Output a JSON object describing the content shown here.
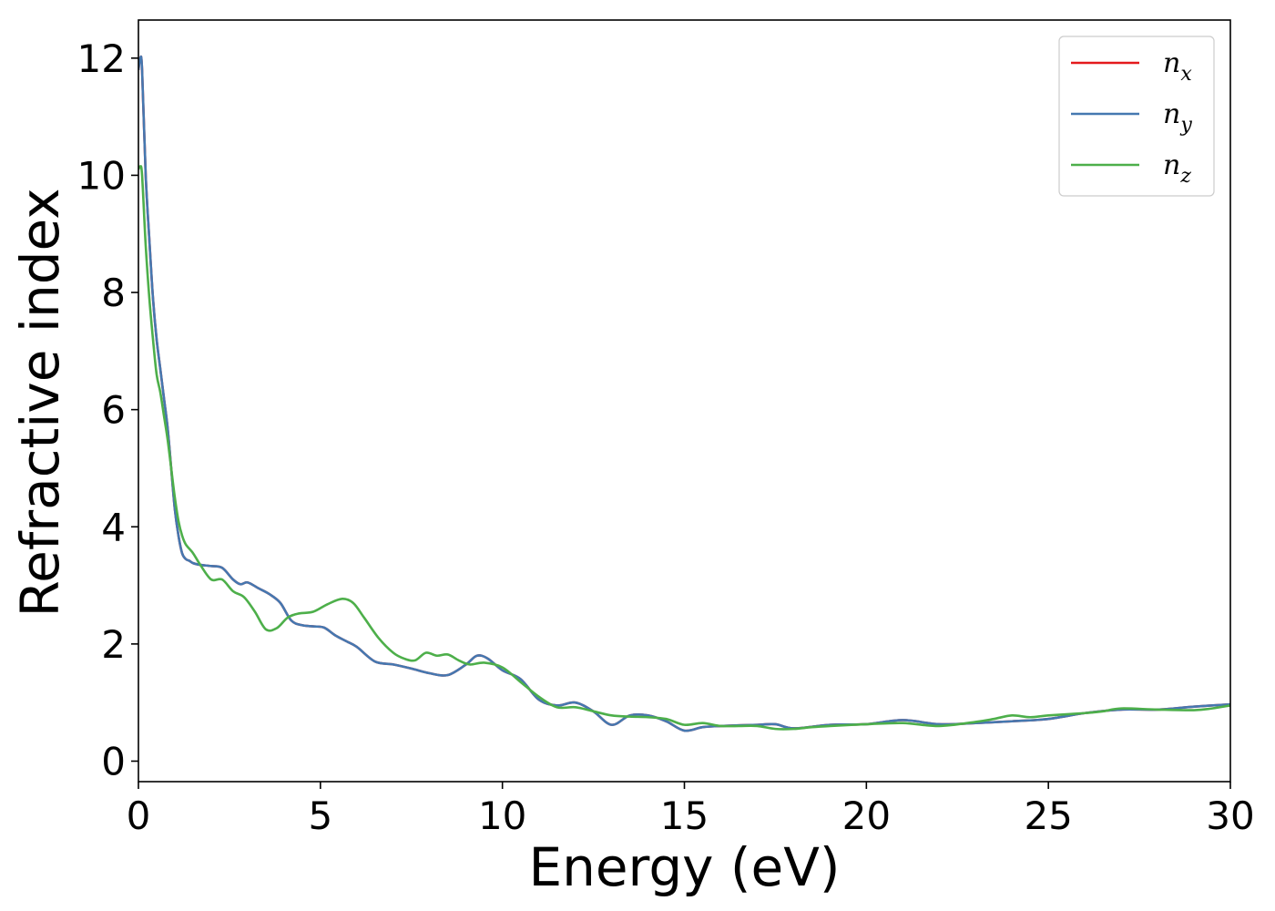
{
  "chart_data": {
    "type": "line",
    "title": "",
    "xlabel": "Energy (eV)",
    "ylabel": "Refractive index",
    "xlim": [
      0,
      30
    ],
    "ylim": [
      -0.35,
      12.65
    ],
    "xticks": [
      0,
      5,
      10,
      15,
      20,
      25,
      30
    ],
    "yticks": [
      0,
      2,
      4,
      6,
      8,
      10,
      12
    ],
    "grid": false,
    "legend_position": "top-right",
    "series": [
      {
        "name": "n_x",
        "label_base": "n",
        "label_sub": "x",
        "color": "#e41a1c",
        "x": [
          0,
          0.05,
          0.1,
          0.2,
          0.3,
          0.4,
          0.5,
          0.6,
          0.7,
          0.8,
          0.9,
          1.0,
          1.1,
          1.2,
          1.3,
          1.4,
          1.5,
          1.7,
          2.0,
          2.3,
          2.6,
          2.8,
          3.0,
          3.3,
          3.6,
          3.9,
          4.2,
          4.5,
          4.8,
          5.1,
          5.4,
          5.7,
          6.0,
          6.5,
          7.0,
          7.5,
          8.0,
          8.5,
          9.0,
          9.3,
          9.6,
          10.0,
          10.5,
          11.0,
          11.5,
          12.0,
          12.5,
          13.0,
          13.5,
          14.0,
          14.5,
          15.0,
          15.5,
          16.0,
          17.0,
          17.5,
          18.0,
          19.0,
          20.0,
          21.0,
          22.0,
          23.0,
          24.0,
          25.0,
          26.0,
          27.0,
          28.0,
          29.0,
          30.0
        ],
        "y": [
          11.8,
          12.0,
          11.8,
          10.0,
          8.9,
          7.9,
          7.2,
          6.7,
          6.2,
          5.7,
          5.0,
          4.3,
          3.85,
          3.55,
          3.45,
          3.42,
          3.38,
          3.35,
          3.33,
          3.3,
          3.1,
          3.02,
          3.05,
          2.95,
          2.85,
          2.7,
          2.4,
          2.32,
          2.3,
          2.28,
          2.15,
          2.05,
          1.95,
          1.7,
          1.65,
          1.58,
          1.5,
          1.47,
          1.65,
          1.8,
          1.75,
          1.55,
          1.4,
          1.05,
          0.95,
          1.0,
          0.85,
          0.62,
          0.78,
          0.78,
          0.68,
          0.52,
          0.58,
          0.6,
          0.62,
          0.63,
          0.56,
          0.62,
          0.63,
          0.7,
          0.63,
          0.65,
          0.68,
          0.72,
          0.82,
          0.88,
          0.88,
          0.93,
          0.97
        ]
      },
      {
        "name": "n_y",
        "label_base": "n",
        "label_sub": "y",
        "color": "#4578b0",
        "x": [
          0,
          0.05,
          0.1,
          0.2,
          0.3,
          0.4,
          0.5,
          0.6,
          0.7,
          0.8,
          0.9,
          1.0,
          1.1,
          1.2,
          1.3,
          1.4,
          1.5,
          1.7,
          2.0,
          2.3,
          2.6,
          2.8,
          3.0,
          3.3,
          3.6,
          3.9,
          4.2,
          4.5,
          4.8,
          5.1,
          5.4,
          5.7,
          6.0,
          6.5,
          7.0,
          7.5,
          8.0,
          8.5,
          9.0,
          9.3,
          9.6,
          10.0,
          10.5,
          11.0,
          11.5,
          12.0,
          12.5,
          13.0,
          13.5,
          14.0,
          14.5,
          15.0,
          15.5,
          16.0,
          17.0,
          17.5,
          18.0,
          19.0,
          20.0,
          21.0,
          22.0,
          23.0,
          24.0,
          25.0,
          26.0,
          27.0,
          28.0,
          29.0,
          30.0
        ],
        "y": [
          11.8,
          12.0,
          11.8,
          10.0,
          8.9,
          7.9,
          7.2,
          6.7,
          6.2,
          5.7,
          5.0,
          4.3,
          3.85,
          3.55,
          3.45,
          3.42,
          3.38,
          3.35,
          3.33,
          3.3,
          3.1,
          3.02,
          3.05,
          2.95,
          2.85,
          2.7,
          2.4,
          2.32,
          2.3,
          2.28,
          2.15,
          2.05,
          1.95,
          1.7,
          1.65,
          1.58,
          1.5,
          1.47,
          1.65,
          1.8,
          1.75,
          1.55,
          1.4,
          1.05,
          0.95,
          1.0,
          0.85,
          0.62,
          0.78,
          0.78,
          0.68,
          0.52,
          0.58,
          0.6,
          0.62,
          0.63,
          0.56,
          0.62,
          0.63,
          0.7,
          0.63,
          0.65,
          0.68,
          0.72,
          0.82,
          0.88,
          0.88,
          0.93,
          0.97
        ]
      },
      {
        "name": "n_z",
        "label_base": "n",
        "label_sub": "z",
        "color": "#4daf4a",
        "x": [
          0,
          0.05,
          0.1,
          0.2,
          0.3,
          0.4,
          0.5,
          0.6,
          0.7,
          0.8,
          0.9,
          1.0,
          1.1,
          1.2,
          1.3,
          1.5,
          1.7,
          2.0,
          2.3,
          2.6,
          2.9,
          3.2,
          3.5,
          3.8,
          4.1,
          4.4,
          4.8,
          5.2,
          5.6,
          5.9,
          6.2,
          6.6,
          7.0,
          7.3,
          7.6,
          7.9,
          8.2,
          8.5,
          8.8,
          9.1,
          9.5,
          10.0,
          10.5,
          11.0,
          11.5,
          12.0,
          12.5,
          13.0,
          13.5,
          14.0,
          14.5,
          15.0,
          15.5,
          16.0,
          16.5,
          17.0,
          17.5,
          18.0,
          18.5,
          19.0,
          20.0,
          21.0,
          22.0,
          23.0,
          23.5,
          24.0,
          24.5,
          25.0,
          26.0,
          26.5,
          27.0,
          28.0,
          29.0,
          29.5,
          30.0
        ],
        "y": [
          10.1,
          10.15,
          10.0,
          8.8,
          7.9,
          7.2,
          6.6,
          6.3,
          5.9,
          5.5,
          5.0,
          4.5,
          4.1,
          3.85,
          3.7,
          3.55,
          3.35,
          3.1,
          3.1,
          2.9,
          2.8,
          2.55,
          2.25,
          2.27,
          2.45,
          2.52,
          2.55,
          2.68,
          2.77,
          2.7,
          2.45,
          2.1,
          1.85,
          1.75,
          1.72,
          1.85,
          1.8,
          1.82,
          1.72,
          1.65,
          1.68,
          1.6,
          1.35,
          1.1,
          0.92,
          0.92,
          0.85,
          0.78,
          0.76,
          0.75,
          0.72,
          0.62,
          0.65,
          0.6,
          0.6,
          0.6,
          0.55,
          0.55,
          0.58,
          0.6,
          0.63,
          0.65,
          0.6,
          0.67,
          0.72,
          0.78,
          0.75,
          0.78,
          0.82,
          0.85,
          0.9,
          0.88,
          0.87,
          0.9,
          0.95
        ]
      }
    ]
  }
}
